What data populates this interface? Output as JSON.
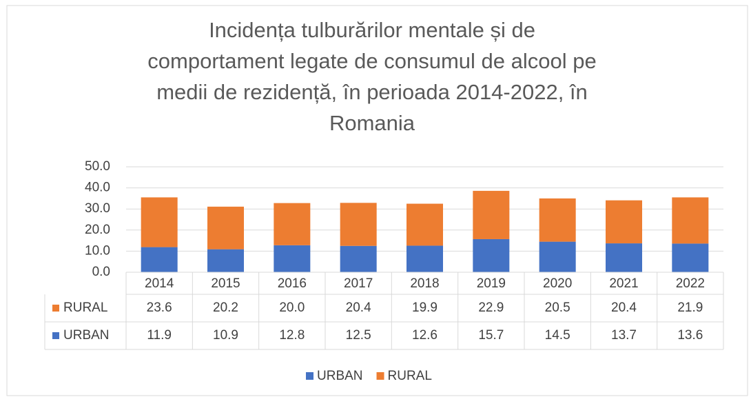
{
  "chart_data": {
    "type": "stacked_bar",
    "title": [
      "Incidența tulburărilor mentale și de",
      "comportament legate de consumul de alcool pe",
      "medii de rezidență, în perioada 2014-2022, în",
      "Romania"
    ],
    "categories": [
      "2014",
      "2015",
      "2016",
      "2017",
      "2018",
      "2019",
      "2020",
      "2021",
      "2022"
    ],
    "series": [
      {
        "name": "URBAN",
        "color": "#4472c4",
        "values": [
          11.9,
          10.9,
          12.8,
          12.5,
          12.6,
          15.7,
          14.5,
          13.7,
          13.6
        ]
      },
      {
        "name": "RURAL",
        "color": "#ed7d31",
        "values": [
          23.6,
          20.2,
          20,
          20.4,
          19.9,
          22.9,
          20.5,
          20.4,
          21.9
        ],
        "value_labels": [
          "23.6",
          "20.2",
          "20.0",
          "20.4",
          "19.9",
          "22.9",
          "20.5",
          "20.4",
          "21.9"
        ]
      }
    ],
    "ylim": [
      0,
      50
    ],
    "yticks": [
      {
        "value": 0,
        "label": "0.0"
      },
      {
        "value": 10,
        "label": "10.0"
      },
      {
        "value": 20,
        "label": "20.0"
      },
      {
        "value": 30,
        "label": "30.0"
      },
      {
        "value": 40,
        "label": "40.0"
      },
      {
        "value": 50,
        "label": "50.0"
      }
    ],
    "grid": true,
    "legend": "bottom",
    "data_table": true
  }
}
